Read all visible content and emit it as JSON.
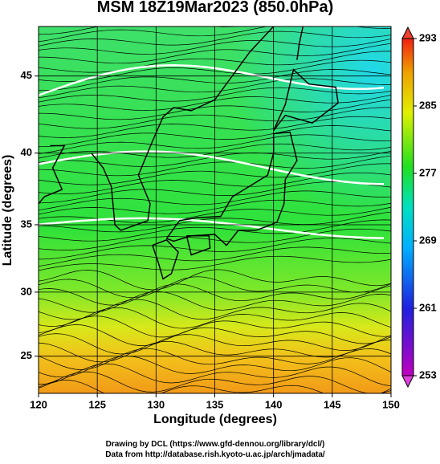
{
  "title": "MSM 18Z19Mar2023 (850.0hPa)",
  "map": {
    "x_label": "Longitude (degrees)",
    "y_label": "Latitude  (degrees)",
    "lon_range": [
      120,
      150
    ],
    "lat_range": [
      22,
      48
    ],
    "lon_ticks": [
      120,
      125,
      130,
      135,
      140,
      145,
      150
    ],
    "lat_ticks": [
      25,
      30,
      35,
      40,
      45
    ]
  },
  "colorbar": {
    "range": [
      253,
      293
    ],
    "ticks": [
      253,
      261,
      269,
      277,
      285,
      293
    ]
  },
  "credits": [
    "Drawing by DCL (https://www.gfd-dennou.org/library/dcl/)",
    "Data from http://database.rish.kyoto-u.ac.jp/arch/jmadata/"
  ]
}
